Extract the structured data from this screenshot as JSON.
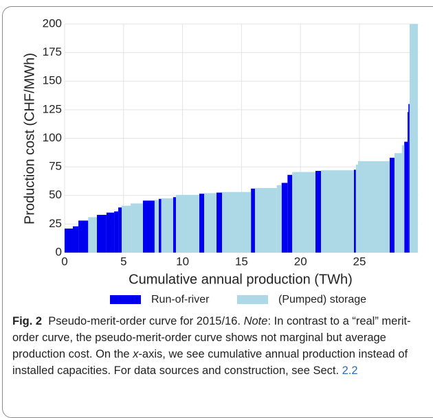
{
  "chart_data": {
    "type": "bar",
    "xlabel": "Cumulative annual production (TWh)",
    "ylabel": "Production cost (CHF/MWh)",
    "xlim": [
      0,
      30
    ],
    "xticks": [
      0,
      5,
      10,
      15,
      20,
      25
    ],
    "ylim": [
      0,
      200
    ],
    "yticks": [
      0,
      25,
      50,
      75,
      100,
      125,
      150,
      175,
      200
    ],
    "grid": true,
    "series": [
      {
        "name": "Run-of-river",
        "color": "#0000ee",
        "x0": [
          0,
          0.7,
          1.17,
          2.74,
          3.55,
          4.2,
          4.55,
          6.64,
          7.98,
          9.2,
          11.42,
          12.88,
          15.8,
          18.4,
          18.9,
          21.27,
          24.53,
          27.56,
          28.8,
          29.08,
          29.15
        ],
        "x1": [
          0.7,
          1.17,
          2.0,
          3.55,
          4.2,
          4.55,
          4.84,
          7.63,
          8.2,
          9.44,
          11.83,
          13.35,
          16.14,
          18.9,
          19.3,
          21.74,
          24.7,
          27.97,
          29.08,
          29.15,
          29.25
        ],
        "values": [
          21,
          23,
          28,
          33,
          35,
          36,
          39.5,
          45.5,
          47,
          48.5,
          51.5,
          52.5,
          56,
          61,
          68,
          71.5,
          72.5,
          83,
          97,
          123,
          130
        ]
      },
      {
        "name": "(Pumped) storage",
        "color": "#add8e6",
        "x0": [
          2.0,
          4.84,
          5.6,
          7.63,
          8.2,
          9.44,
          11.83,
          13.35,
          16.14,
          17.99,
          19.3,
          21.74,
          24.7,
          24.88,
          27.97,
          28.6,
          29.25
        ],
        "x1": [
          2.74,
          5.6,
          6.64,
          7.98,
          9.2,
          11.42,
          12.88,
          15.8,
          17.99,
          18.4,
          21.27,
          24.53,
          24.88,
          27.56,
          28.6,
          28.8,
          29.95
        ],
        "values": [
          31,
          41,
          43,
          46,
          47.5,
          50.5,
          52,
          53,
          56.5,
          59,
          70.5,
          72,
          77,
          80,
          87,
          94,
          200
        ]
      }
    ]
  },
  "caption": {
    "label": "Fig. 2",
    "parts": [
      "Pseudo-merit-order curve for 2015/16. ",
      "Note",
      ": In contrast to a “real” merit-order curve, the pseudo-merit-order curve shows not  marginal but  average production cost. On the ",
      "x",
      "-axis, we see cumulative annual production instead of installed capacities. For data sources and construction, see Sect. ",
      "2.2"
    ]
  }
}
